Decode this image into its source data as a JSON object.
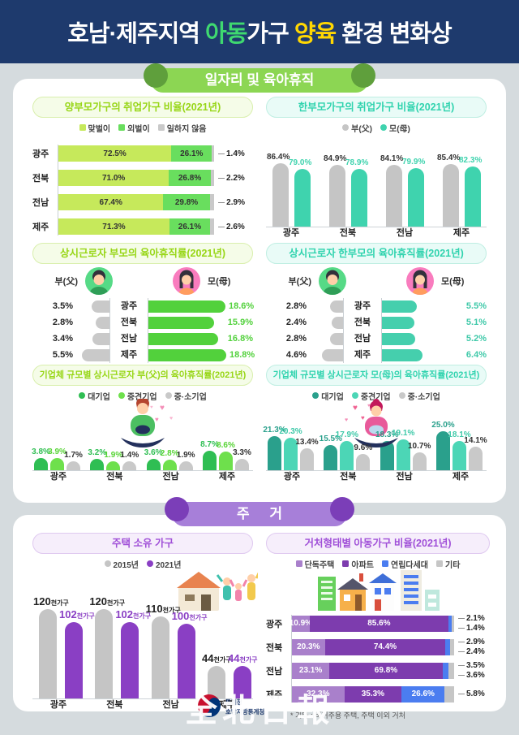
{
  "header": {
    "title_parts": [
      {
        "text": "호남·제주지역 ",
        "color": "#ffffff"
      },
      {
        "text": "아동",
        "color": "#3fd970"
      },
      {
        "text": "가구 ",
        "color": "#ffffff"
      },
      {
        "text": "양육",
        "color": "#ffd702"
      },
      {
        "text": " 환경 변화상",
        "color": "#ffffff"
      }
    ],
    "bg_color": "#1e3a6d"
  },
  "sections": {
    "jobs": {
      "ribbon": "일자리 및 육아휴직",
      "color": "#8cd653"
    },
    "housing": {
      "ribbon": "주 거",
      "color": "#a77fd9"
    }
  },
  "footer": {
    "agency_line1": "통계청",
    "agency_line2": "호남지방통계청",
    "watermark": "全北日報"
  },
  "chart_data": [
    {
      "type": "bar",
      "subtype": "stacked-horizontal",
      "title": "양부모가구의 취업가구 비율(2021년)",
      "categories": [
        "광주",
        "전북",
        "전남",
        "제주"
      ],
      "legend": [
        "맞벌이",
        "외벌이",
        "일하지 않음"
      ],
      "marker": "square",
      "colors": [
        "#c6e95b",
        "#69de5e",
        "#c9c9c9"
      ],
      "inside_label_color": "#333333",
      "series": [
        {
          "name": "맞벌이",
          "values": [
            72.5,
            71.0,
            67.4,
            71.3
          ]
        },
        {
          "name": "외벌이",
          "values": [
            26.1,
            26.8,
            29.8,
            26.1
          ]
        },
        {
          "name": "일하지 않음",
          "values": [
            1.4,
            2.2,
            2.9,
            2.6
          ]
        }
      ],
      "xlim": [
        0,
        100
      ]
    },
    {
      "type": "bar",
      "subtype": "grouped-vertical",
      "title": "한부모가구의 취업가구 비율(2021년)",
      "categories": [
        "광주",
        "전북",
        "전남",
        "제주"
      ],
      "legend": [
        "부(父)",
        "모(母)"
      ],
      "marker": "dot",
      "colors": [
        "#c5c5c5",
        "#3fd3ae"
      ],
      "label_colors": [
        "#333333",
        "#3fd3ae"
      ],
      "series": [
        {
          "name": "부(父)",
          "values": [
            86.4,
            84.9,
            84.1,
            85.4
          ]
        },
        {
          "name": "모(母)",
          "values": [
            79.0,
            78.9,
            79.9,
            82.3
          ]
        }
      ],
      "ylim": [
        0,
        100
      ]
    },
    {
      "type": "bar",
      "subtype": "tornado",
      "title": "상시근로자 부모의 육아휴직률(2021년)",
      "categories": [
        "광주",
        "전북",
        "전남",
        "제주"
      ],
      "legend": [
        "부(父)",
        "모(母)"
      ],
      "colors": [
        "#c9c9c9",
        "#52d13c"
      ],
      "value_colors": [
        "#222222",
        "#52d13c"
      ],
      "series": [
        {
          "name": "부(父)",
          "values": [
            3.5,
            2.8,
            3.4,
            5.5
          ]
        },
        {
          "name": "모(母)",
          "values": [
            18.6,
            15.9,
            16.8,
            18.8
          ]
        }
      ]
    },
    {
      "type": "bar",
      "subtype": "tornado",
      "title": "상시근로자 한부모의 육아휴직률(2021년)",
      "categories": [
        "광주",
        "전북",
        "전남",
        "제주"
      ],
      "legend": [
        "부(父)",
        "모(母)"
      ],
      "colors": [
        "#c9c9c9",
        "#45cfad"
      ],
      "value_colors": [
        "#222222",
        "#3fc9a9"
      ],
      "series": [
        {
          "name": "부(父)",
          "values": [
            2.8,
            2.4,
            2.8,
            4.6
          ]
        },
        {
          "name": "모(母)",
          "values": [
            5.5,
            5.1,
            5.2,
            6.4
          ]
        }
      ]
    },
    {
      "type": "bar",
      "subtype": "grouped-vertical",
      "title": "기업체 규모별 상시근로자 부(父)의 육아휴직률(2021년)",
      "categories": [
        "광주",
        "전북",
        "전남",
        "제주"
      ],
      "legend": [
        "대기업",
        "중견기업",
        "중·소기업"
      ],
      "marker": "dot",
      "colors": [
        "#2fbe53",
        "#6ee04c",
        "#c9c9c9"
      ],
      "label_colors": [
        "#2fbe53",
        "#57d435",
        "#333333"
      ],
      "series": [
        {
          "name": "대기업",
          "values": [
            3.8,
            3.2,
            3.6,
            8.7
          ]
        },
        {
          "name": "중견기업",
          "values": [
            3.9,
            1.9,
            2.8,
            8.6
          ]
        },
        {
          "name": "중·소기업",
          "values": [
            1.7,
            1.4,
            1.9,
            3.3
          ]
        }
      ]
    },
    {
      "type": "bar",
      "subtype": "grouped-vertical",
      "title": "기업체 규모별 상시근로자 모(母)의 육아휴직률(2021년)",
      "categories": [
        "광주",
        "전북",
        "전남",
        "제주"
      ],
      "legend": [
        "대기업",
        "중견기업",
        "중·소기업"
      ],
      "marker": "dot",
      "colors": [
        "#2aa08c",
        "#4cd6b6",
        "#c9c9c9"
      ],
      "label_colors": [
        "#2aa08c",
        "#3fc9a9",
        "#333333"
      ],
      "series": [
        {
          "name": "대기업",
          "values": [
            21.3,
            15.5,
            18.3,
            25.0
          ]
        },
        {
          "name": "중견기업",
          "values": [
            20.3,
            17.9,
            19.1,
            18.1
          ]
        },
        {
          "name": "중·소기업",
          "values": [
            13.4,
            9.6,
            10.7,
            14.1
          ]
        }
      ]
    },
    {
      "type": "bar",
      "subtype": "grouped-vertical",
      "title": "주택 소유 가구",
      "categories": [
        "광주",
        "전북",
        "전남",
        "제주"
      ],
      "legend": [
        "2015년",
        "2021년"
      ],
      "marker": "dot",
      "colors": [
        "#c5c5c5",
        "#8a3fc4"
      ],
      "label_colors": [
        "#222222",
        "#8a3fc4"
      ],
      "unit": "천가구",
      "series": [
        {
          "name": "2015년",
          "values": [
            120,
            120,
            110,
            44
          ]
        },
        {
          "name": "2021년",
          "values": [
            102,
            102,
            100,
            44
          ]
        }
      ]
    },
    {
      "type": "bar",
      "subtype": "stacked-horizontal",
      "title": "거처형태별 아동가구 비율(2021년)",
      "categories": [
        "광주",
        "전북",
        "전남",
        "제주"
      ],
      "legend": [
        "단독주택",
        "아파트",
        "연립다세대",
        "기타"
      ],
      "marker": "square",
      "colors": [
        "#a980cb",
        "#7d3cae",
        "#4b7df0",
        "#c6c6c6"
      ],
      "inside_label_color": "#ffffff",
      "series": [
        {
          "name": "단독주택",
          "values": [
            10.9,
            20.3,
            23.1,
            32.3
          ]
        },
        {
          "name": "아파트",
          "values": [
            85.6,
            74.4,
            69.8,
            35.3
          ]
        },
        {
          "name": "연립다세대",
          "values": [
            2.1,
            2.9,
            3.5,
            26.6
          ]
        },
        {
          "name": "기타",
          "values": [
            1.4,
            2.4,
            3.6,
            5.8
          ]
        }
      ],
      "footnote": "* 기타 : 비거주용 주택, 주택 이외 거처",
      "xlim": [
        0,
        100
      ]
    }
  ]
}
